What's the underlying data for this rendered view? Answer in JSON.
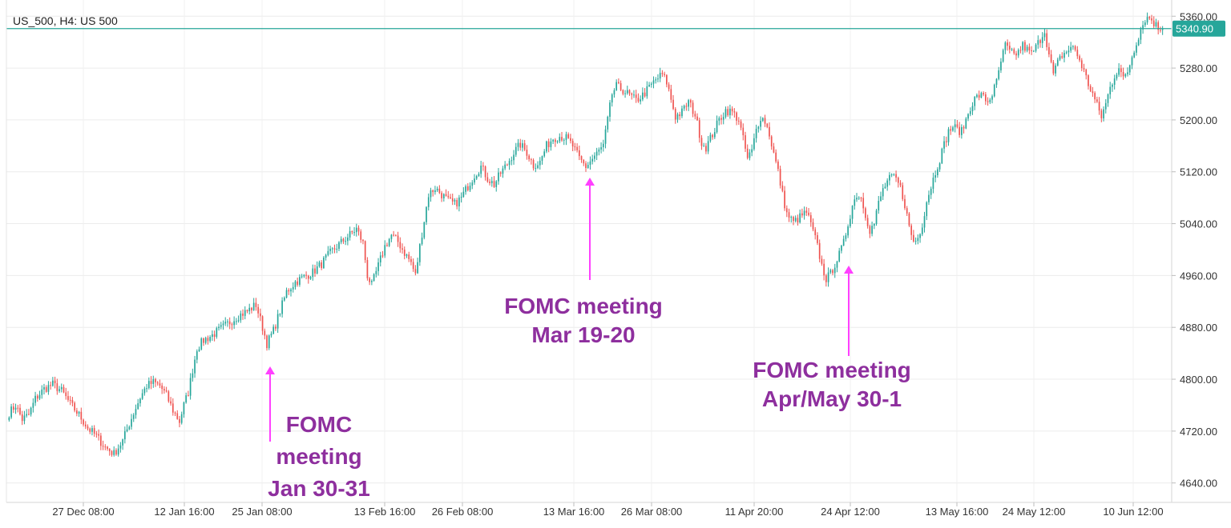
{
  "chart_data": {
    "type": "candlestick",
    "title": "US_500, H4: US 500",
    "x_ticks": [
      "27 Dec 08:00",
      "12 Jan 16:00",
      "25 Jan 08:00",
      "13 Feb 16:00",
      "26 Feb 08:00",
      "13 Mar 16:00",
      "26 Mar 08:00",
      "11 Apr 20:00",
      "24 Apr 12:00",
      "13 May 16:00",
      "24 May 12:00",
      "10 Jun 12:00"
    ],
    "y_ticks": [
      "5360.00",
      "5280.00",
      "5200.00",
      "5120.00",
      "5040.00",
      "4960.00",
      "4880.00",
      "4800.00",
      "4720.00",
      "4640.00"
    ],
    "ylim": [
      4610,
      5385
    ],
    "grid": true,
    "current_price": {
      "value": 5340.9,
      "label": "5340.90",
      "color": "#26a69a"
    },
    "colors": {
      "up": "#26a69a",
      "down": "#ef5350",
      "annotation_text": "#8e2f9e",
      "annotation_arrow": "#ff40ff"
    },
    "price_path": [
      [
        0,
        4748
      ],
      [
        3,
        4760
      ],
      [
        6,
        4738
      ],
      [
        9,
        4745
      ],
      [
        12,
        4770
      ],
      [
        16,
        4785
      ],
      [
        20,
        4792
      ],
      [
        24,
        4782
      ],
      [
        28,
        4762
      ],
      [
        32,
        4745
      ],
      [
        36,
        4725
      ],
      [
        40,
        4712
      ],
      [
        44,
        4695
      ],
      [
        48,
        4685
      ],
      [
        52,
        4705
      ],
      [
        56,
        4740
      ],
      [
        60,
        4772
      ],
      [
        63,
        4790
      ],
      [
        66,
        4795
      ],
      [
        69,
        4790
      ],
      [
        72,
        4775
      ],
      [
        75,
        4752
      ],
      [
        78,
        4735
      ],
      [
        80,
        4760
      ],
      [
        82,
        4780
      ],
      [
        84,
        4815
      ],
      [
        86,
        4848
      ],
      [
        89,
        4860
      ],
      [
        93,
        4868
      ],
      [
        97,
        4878
      ],
      [
        101,
        4888
      ],
      [
        105,
        4898
      ],
      [
        109,
        4905
      ],
      [
        113,
        4915
      ],
      [
        116,
        4880
      ],
      [
        118,
        4855
      ],
      [
        121,
        4875
      ],
      [
        124,
        4905
      ],
      [
        127,
        4935
      ],
      [
        131,
        4950
      ],
      [
        135,
        4958
      ],
      [
        139,
        4965
      ],
      [
        143,
        4978
      ],
      [
        147,
        4995
      ],
      [
        151,
        5008
      ],
      [
        155,
        5020
      ],
      [
        159,
        5032
      ],
      [
        162,
        5010
      ],
      [
        164,
        4960
      ],
      [
        166,
        4945
      ],
      [
        169,
        4975
      ],
      [
        172,
        5005
      ],
      [
        175,
        5022
      ],
      [
        178,
        5012
      ],
      [
        181,
        4995
      ],
      [
        184,
        4980
      ],
      [
        186,
        4960
      ],
      [
        188,
        5005
      ],
      [
        190,
        5045
      ],
      [
        192,
        5085
      ],
      [
        195,
        5095
      ],
      [
        198,
        5085
      ],
      [
        201,
        5075
      ],
      [
        204,
        5070
      ],
      [
        207,
        5080
      ],
      [
        210,
        5098
      ],
      [
        213,
        5115
      ],
      [
        216,
        5128
      ],
      [
        219,
        5110
      ],
      [
        222,
        5100
      ],
      [
        225,
        5118
      ],
      [
        228,
        5132
      ],
      [
        231,
        5150
      ],
      [
        234,
        5162
      ],
      [
        237,
        5150
      ],
      [
        240,
        5130
      ],
      [
        243,
        5135
      ],
      [
        246,
        5160
      ],
      [
        249,
        5172
      ],
      [
        252,
        5175
      ],
      [
        255,
        5172
      ],
      [
        258,
        5160
      ],
      [
        261,
        5140
      ],
      [
        264,
        5128
      ],
      [
        267,
        5140
      ],
      [
        270,
        5152
      ],
      [
        272,
        5160
      ],
      [
        274,
        5200
      ],
      [
        276,
        5240
      ],
      [
        278,
        5252
      ],
      [
        281,
        5246
      ],
      [
        284,
        5238
      ],
      [
        287,
        5230
      ],
      [
        290,
        5238
      ],
      [
        293,
        5250
      ],
      [
        296,
        5262
      ],
      [
        299,
        5270
      ],
      [
        301,
        5258
      ],
      [
        303,
        5232
      ],
      [
        305,
        5205
      ],
      [
        308,
        5212
      ],
      [
        311,
        5228
      ],
      [
        314,
        5208
      ],
      [
        317,
        5165
      ],
      [
        319,
        5158
      ],
      [
        322,
        5178
      ],
      [
        325,
        5200
      ],
      [
        328,
        5215
      ],
      [
        331,
        5212
      ],
      [
        334,
        5200
      ],
      [
        336,
        5170
      ],
      [
        338,
        5140
      ],
      [
        340,
        5152
      ],
      [
        342,
        5185
      ],
      [
        344,
        5205
      ],
      [
        346,
        5198
      ],
      [
        348,
        5178
      ],
      [
        350,
        5148
      ],
      [
        352,
        5120
      ],
      [
        354,
        5085
      ],
      [
        356,
        5055
      ],
      [
        359,
        5042
      ],
      [
        362,
        5050
      ],
      [
        365,
        5058
      ],
      [
        368,
        5028
      ],
      [
        370,
        5005
      ],
      [
        372,
        4975
      ],
      [
        374,
        4955
      ],
      [
        376,
        4962
      ],
      [
        378,
        4978
      ],
      [
        380,
        4992
      ],
      [
        382,
        5010
      ],
      [
        384,
        5040
      ],
      [
        386,
        5068
      ],
      [
        388,
        5085
      ],
      [
        390,
        5080
      ],
      [
        392,
        5055
      ],
      [
        394,
        5030
      ],
      [
        396,
        5040
      ],
      [
        398,
        5072
      ],
      [
        400,
        5092
      ],
      [
        402,
        5105
      ],
      [
        404,
        5112
      ],
      [
        406,
        5108
      ],
      [
        408,
        5095
      ],
      [
        410,
        5070
      ],
      [
        412,
        5035
      ],
      [
        414,
        5012
      ],
      [
        416,
        5018
      ],
      [
        418,
        5040
      ],
      [
        420,
        5075
      ],
      [
        422,
        5098
      ],
      [
        424,
        5120
      ],
      [
        426,
        5140
      ],
      [
        428,
        5162
      ],
      [
        430,
        5182
      ],
      [
        432,
        5190
      ],
      [
        434,
        5185
      ],
      [
        436,
        5182
      ],
      [
        438,
        5200
      ],
      [
        440,
        5220
      ],
      [
        442,
        5232
      ],
      [
        444,
        5238
      ],
      [
        446,
        5235
      ],
      [
        448,
        5228
      ],
      [
        450,
        5240
      ],
      [
        452,
        5258
      ],
      [
        454,
        5290
      ],
      [
        456,
        5315
      ],
      [
        458,
        5305
      ],
      [
        460,
        5300
      ],
      [
        462,
        5305
      ],
      [
        464,
        5315
      ],
      [
        466,
        5308
      ],
      [
        468,
        5302
      ],
      [
        470,
        5312
      ],
      [
        472,
        5325
      ],
      [
        474,
        5338
      ],
      [
        476,
        5300
      ],
      [
        478,
        5270
      ],
      [
        480,
        5288
      ],
      [
        482,
        5300
      ],
      [
        484,
        5305
      ],
      [
        486,
        5312
      ],
      [
        488,
        5308
      ],
      [
        490,
        5292
      ],
      [
        492,
        5275
      ],
      [
        494,
        5255
      ],
      [
        496,
        5240
      ],
      [
        498,
        5222
      ],
      [
        500,
        5205
      ],
      [
        502,
        5225
      ],
      [
        504,
        5250
      ],
      [
        506,
        5268
      ],
      [
        508,
        5282
      ],
      [
        510,
        5262
      ],
      [
        512,
        5275
      ],
      [
        514,
        5298
      ],
      [
        516,
        5320
      ],
      [
        518,
        5340
      ],
      [
        520,
        5356
      ],
      [
        522,
        5358
      ],
      [
        524,
        5350
      ],
      [
        526,
        5342
      ],
      [
        528,
        5341
      ]
    ],
    "annotations": [
      {
        "lines": [
          "FOMC",
          "meeting",
          "Jan 30-31"
        ],
        "bar": 117
      },
      {
        "lines": [
          "FOMC meeting",
          "Mar 19-20"
        ],
        "bar": 271
      },
      {
        "lines": [
          "FOMC meeting",
          "Apr/May 30-1"
        ],
        "bar": 414
      }
    ]
  }
}
